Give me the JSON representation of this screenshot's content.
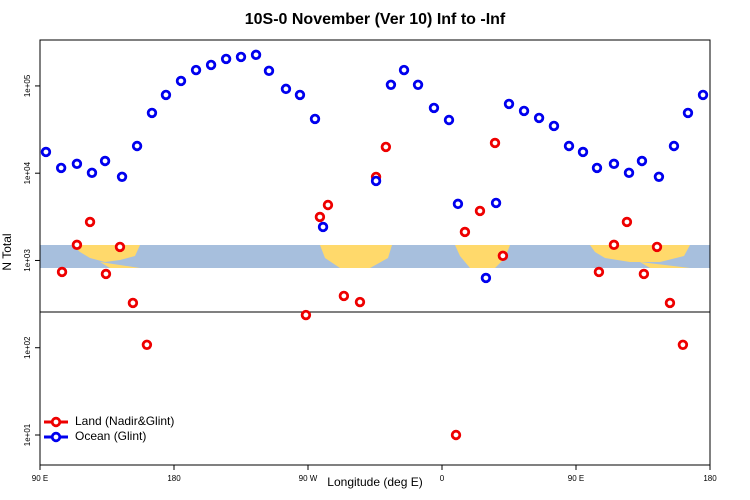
{
  "chart_data": {
    "type": "scatter",
    "title": "10S-0 November (Ver 10)   Inf to -Inf",
    "xlabel": "Longitude (deg E)",
    "ylabel": "N Total",
    "log_y": true,
    "xlim": [
      90,
      540
    ],
    "xticks": [
      {
        "value": 90,
        "label": "90 E"
      },
      180,
      {
        "value": 270,
        "label": "90 W"
      },
      {
        "value": 360,
        "label": "0"
      },
      {
        "value": 450,
        "label": "90 E"
      },
      {
        "value": 540,
        "label": "180"
      }
    ],
    "ylim": [
      4.53,
      336000
    ],
    "yticks": [
      {
        "value": 10,
        "label": "1e+01"
      },
      {
        "value": 100,
        "label": "1e+02"
      },
      {
        "value": 1000,
        "label": "1e+03"
      },
      {
        "value": 10000,
        "label": "1e+04"
      },
      {
        "value": 100000,
        "label": "1e+05"
      }
    ],
    "hline": 257,
    "legend": "bottom-left",
    "series": [
      {
        "name": "Land (Nadir&Glint)",
        "color": "#ee0000",
        "x": [
          104.8,
          114.8,
          123.6,
          134.3,
          143.7,
          152.4,
          161.8,
          268.6,
          278,
          283.4,
          294.1,
          304.9,
          315.7,
          322.3,
          369.4,
          375.4,
          385.5,
          395.6,
          400.9,
          465.4,
          475.5,
          484.2,
          495.6,
          504.4,
          513.1,
          521.8
        ],
        "values": [
          738,
          1510,
          2760,
          700,
          1430,
          326,
          108,
          237,
          3150,
          4320,
          392,
          334,
          9060,
          20000,
          10,
          2120,
          3690,
          22200,
          1130,
          738,
          1510,
          2760,
          700,
          1430,
          326,
          108
        ]
      },
      {
        "name": "Ocean (Glint)",
        "color": "#0000ee",
        "x": [
          94,
          104.2,
          114.8,
          124.9,
          133.7,
          145.1,
          155.2,
          165.2,
          174.6,
          184.7,
          194.8,
          204.9,
          215,
          225,
          235.1,
          243.8,
          255.2,
          264.6,
          274.7,
          280.1,
          315.7,
          325.7,
          334.5,
          343.9,
          354.6,
          364.7,
          370.7,
          389.5,
          396.3,
          405,
          415.1,
          425.2,
          435.2,
          445.3,
          454.7,
          464.1,
          475.5,
          485.6,
          494.3,
          505.7,
          515.8,
          525.2,
          535.3
        ],
        "values": [
          17500,
          11500,
          12800,
          10100,
          13800,
          9100,
          20500,
          49100,
          78900,
          114000,
          152000,
          174000,
          204000,
          215000,
          227000,
          149000,
          92500,
          78900,
          41900,
          2420,
          8150,
          103000,
          152000,
          103000,
          56000,
          40700,
          4450,
          630,
          4560,
          62200,
          51700,
          43000,
          34800,
          20500,
          17500,
          11500,
          12800,
          10100,
          13800,
          9100,
          20500,
          49100,
          78900
        ]
      }
    ]
  }
}
